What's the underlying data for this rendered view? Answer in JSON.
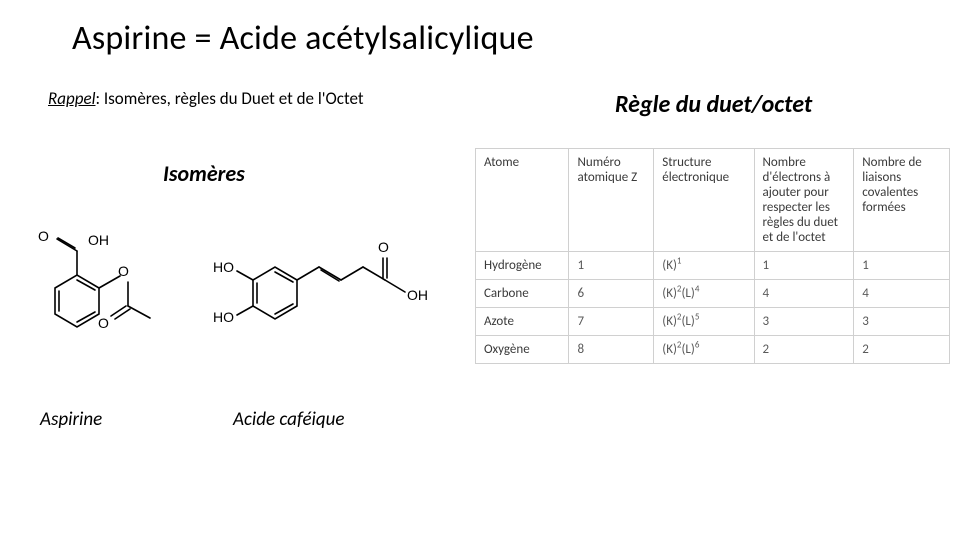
{
  "title": "Aspirine = Acide acétylsalicylique",
  "subtitle": {
    "rappel_label": "Rappel",
    "rest": ": Isomères, règles du Duet et de l'Octet"
  },
  "rule_title": "Règle du duet/octet",
  "isomeres_title": "Isomères",
  "molecule_labels": {
    "aspirine": "Aspirine",
    "cafeique": "Acide caféique"
  },
  "molecule_svg": {
    "aspirine": {
      "stroke": "#000000",
      "stroke_width": 1.6,
      "text_color": "#000000",
      "labels": [
        "O",
        "OH",
        "O",
        "O"
      ]
    },
    "cafeique": {
      "stroke": "#000000",
      "stroke_width": 1.6,
      "text_color": "#000000",
      "labels": [
        "HO",
        "HO",
        "O",
        "OH"
      ]
    }
  },
  "table": {
    "header_color": "#3a3a3a",
    "body_color": "#595959",
    "border_color": "#d0d0d0",
    "columns": [
      "Atome",
      "Numéro atomique Z",
      "Structure électronique",
      "Nombre d'électrons à ajouter pour respecter les règles du duet et de l'octet",
      "Nombre de liaisons covalentes formées"
    ],
    "rows": [
      {
        "atom": "Hydrogène",
        "Z": "1",
        "struct_html": "(K)<sup>1</sup>",
        "add": "1",
        "bonds": "1"
      },
      {
        "atom": "Carbone",
        "Z": "6",
        "struct_html": "(K)<sup>2</sup>(L)<sup>4</sup>",
        "add": "4",
        "bonds": "4"
      },
      {
        "atom": "Azote",
        "Z": "7",
        "struct_html": "(K)<sup>2</sup>(L)<sup>5</sup>",
        "add": "3",
        "bonds": "3"
      },
      {
        "atom": "Oxygène",
        "Z": "8",
        "struct_html": "(K)<sup>2</sup>(L)<sup>6</sup>",
        "add": "2",
        "bonds": "2"
      }
    ]
  }
}
